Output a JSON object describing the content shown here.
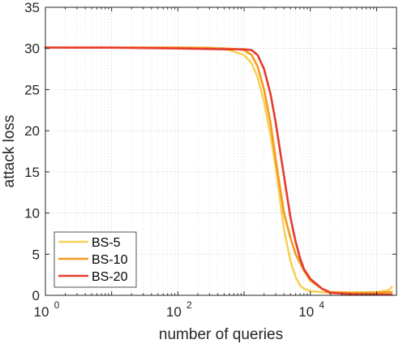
{
  "chart_data": {
    "type": "line",
    "title": "",
    "xlabel": "number of queries",
    "ylabel": "attack loss",
    "x_scale": "log",
    "xlim": [
      1,
      200000
    ],
    "ylim": [
      0,
      35
    ],
    "x_ticks": [
      {
        "value": 1,
        "base": "10",
        "exp": "0"
      },
      {
        "value": 100,
        "base": "10",
        "exp": "2"
      },
      {
        "value": 10000,
        "base": "10",
        "exp": "4"
      }
    ],
    "y_ticks": [
      "0",
      "5",
      "10",
      "15",
      "20",
      "25",
      "30",
      "35"
    ],
    "grid": true,
    "legend_position": "bottom-left",
    "series": [
      {
        "name": "BS-5",
        "color": "#f9d057",
        "points": [
          [
            1,
            30.1
          ],
          [
            10,
            30.1
          ],
          [
            100,
            30.1
          ],
          [
            300,
            30.1
          ],
          [
            600,
            29.8
          ],
          [
            1000,
            29.2
          ],
          [
            1300,
            28.2
          ],
          [
            1600,
            26.5
          ],
          [
            2000,
            23.5
          ],
          [
            2500,
            19.5
          ],
          [
            3000,
            15.5
          ],
          [
            3500,
            11.5
          ],
          [
            4000,
            8.0
          ],
          [
            5000,
            4.2
          ],
          [
            6000,
            2.2
          ],
          [
            7000,
            1.2
          ],
          [
            8000,
            0.8
          ],
          [
            10000,
            0.5
          ],
          [
            20000,
            0.3
          ],
          [
            50000,
            0.35
          ],
          [
            100000,
            0.4
          ],
          [
            150000,
            0.6
          ],
          [
            170000,
            1.0
          ]
        ]
      },
      {
        "name": "BS-10",
        "color": "#f49a1e",
        "points": [
          [
            1,
            30.1
          ],
          [
            10,
            30.1
          ],
          [
            100,
            30.1
          ],
          [
            500,
            30.0
          ],
          [
            800,
            29.9
          ],
          [
            1000,
            29.8
          ],
          [
            1300,
            29.2
          ],
          [
            1600,
            27.8
          ],
          [
            2000,
            25.0
          ],
          [
            2500,
            21.0
          ],
          [
            3000,
            16.5
          ],
          [
            3500,
            13.0
          ],
          [
            4000,
            10.0
          ],
          [
            5000,
            7.0
          ],
          [
            6000,
            5.0
          ],
          [
            8000,
            3.0
          ],
          [
            10000,
            1.8
          ],
          [
            15000,
            0.8
          ],
          [
            20000,
            0.4
          ],
          [
            50000,
            0.3
          ],
          [
            100000,
            0.3
          ],
          [
            170000,
            0.4
          ]
        ]
      },
      {
        "name": "BS-20",
        "color": "#e63b2e",
        "points": [
          [
            1,
            30.1
          ],
          [
            10,
            30.1
          ],
          [
            100,
            30.0
          ],
          [
            500,
            29.9
          ],
          [
            1000,
            29.9
          ],
          [
            1300,
            29.8
          ],
          [
            1600,
            29.2
          ],
          [
            2000,
            27.5
          ],
          [
            2500,
            24.5
          ],
          [
            3000,
            21.0
          ],
          [
            3500,
            17.5
          ],
          [
            4000,
            14.5
          ],
          [
            5000,
            9.5
          ],
          [
            6000,
            6.5
          ],
          [
            7000,
            4.5
          ],
          [
            8000,
            3.2
          ],
          [
            10000,
            2.0
          ],
          [
            15000,
            0.8
          ],
          [
            20000,
            0.3
          ],
          [
            50000,
            0.1
          ],
          [
            100000,
            0.1
          ],
          [
            170000,
            0.1
          ]
        ]
      }
    ]
  }
}
